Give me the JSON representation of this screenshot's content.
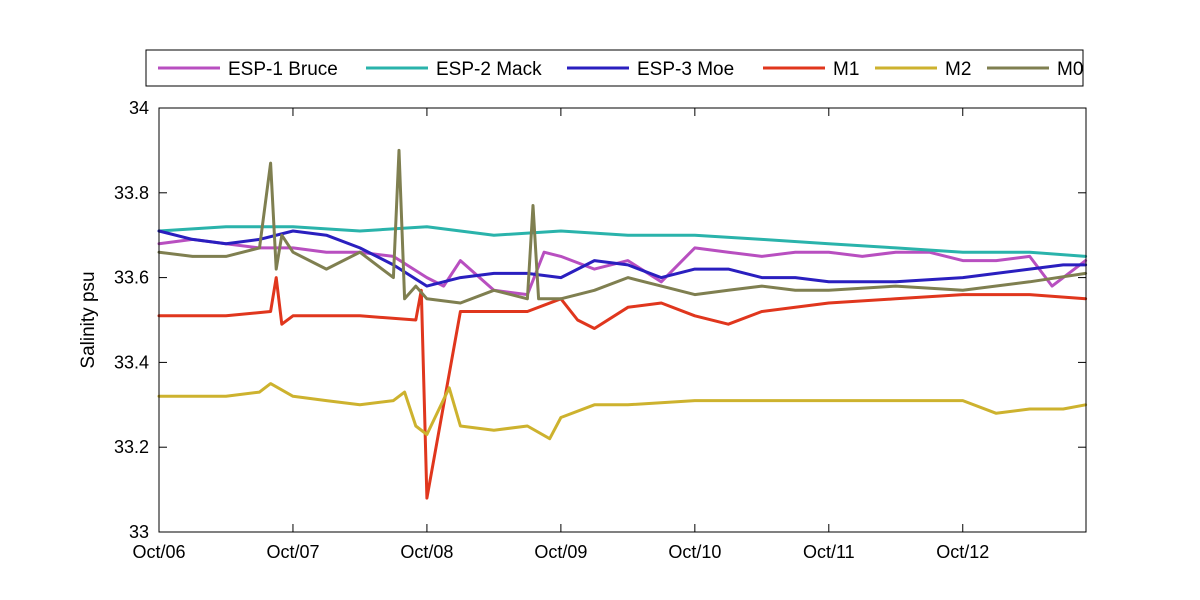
{
  "chart_data": {
    "type": "line",
    "title": "",
    "xlabel": "",
    "ylabel": "Salinity psu",
    "x_unit": "day",
    "xlim": [
      "Oct/06",
      "Oct/12 ~22:00"
    ],
    "x_ticks": [
      "Oct/06",
      "Oct/07",
      "Oct/08",
      "Oct/09",
      "Oct/10",
      "Oct/11",
      "Oct/12"
    ],
    "ylim": [
      33,
      34
    ],
    "y_ticks": [
      "33",
      "33.2",
      "33.4",
      "33.6",
      "33.8",
      "34"
    ],
    "grid": false,
    "legend_position": "top, outside plot, single row",
    "series": [
      {
        "name": "ESP-1 Bruce",
        "color": "#b84fc0",
        "x": [
          "Oct/06 00:00",
          "Oct/06 06:00",
          "Oct/06 12:00",
          "Oct/06 18:00",
          "Oct/07 00:00",
          "Oct/07 06:00",
          "Oct/07 12:00",
          "Oct/07 18:00",
          "Oct/08 00:00",
          "Oct/08 03:00",
          "Oct/08 06:00",
          "Oct/08 12:00",
          "Oct/08 18:00",
          "Oct/08 21:00",
          "Oct/09 00:00",
          "Oct/09 06:00",
          "Oct/09 12:00",
          "Oct/09 18:00",
          "Oct/10 00:00",
          "Oct/10 06:00",
          "Oct/10 12:00",
          "Oct/10 18:00",
          "Oct/11 00:00",
          "Oct/11 06:00",
          "Oct/11 12:00",
          "Oct/11 18:00",
          "Oct/12 00:00",
          "Oct/12 06:00",
          "Oct/12 12:00",
          "Oct/12 16:00",
          "Oct/12 22:00"
        ],
        "y": [
          33.68,
          33.69,
          33.68,
          33.67,
          33.67,
          33.66,
          33.66,
          33.65,
          33.6,
          33.58,
          33.64,
          33.57,
          33.56,
          33.66,
          33.65,
          33.62,
          33.64,
          33.59,
          33.67,
          33.66,
          33.65,
          33.66,
          33.66,
          33.65,
          33.66,
          33.66,
          33.64,
          33.64,
          33.65,
          33.58,
          33.64
        ]
      },
      {
        "name": "ESP-2 Mack",
        "color": "#2ab3ab",
        "x": [
          "Oct/06 00:00",
          "Oct/06 12:00",
          "Oct/07 00:00",
          "Oct/07 12:00",
          "Oct/08 00:00",
          "Oct/08 12:00",
          "Oct/09 00:00",
          "Oct/09 12:00",
          "Oct/10 00:00",
          "Oct/10 12:00",
          "Oct/11 00:00",
          "Oct/11 12:00",
          "Oct/12 00:00",
          "Oct/12 12:00",
          "Oct/12 22:00"
        ],
        "y": [
          33.71,
          33.72,
          33.72,
          33.71,
          33.72,
          33.7,
          33.71,
          33.7,
          33.7,
          33.69,
          33.68,
          33.67,
          33.66,
          33.66,
          33.65
        ]
      },
      {
        "name": "ESP-3 Moe",
        "color": "#2a1fbf",
        "x": [
          "Oct/06 00:00",
          "Oct/06 06:00",
          "Oct/06 12:00",
          "Oct/06 18:00",
          "Oct/07 00:00",
          "Oct/07 06:00",
          "Oct/07 12:00",
          "Oct/07 18:00",
          "Oct/08 00:00",
          "Oct/08 06:00",
          "Oct/08 12:00",
          "Oct/08 18:00",
          "Oct/09 00:00",
          "Oct/09 06:00",
          "Oct/09 12:00",
          "Oct/09 18:00",
          "Oct/10 00:00",
          "Oct/10 06:00",
          "Oct/10 12:00",
          "Oct/10 18:00",
          "Oct/11 00:00",
          "Oct/11 12:00",
          "Oct/12 00:00",
          "Oct/12 06:00",
          "Oct/12 12:00",
          "Oct/12 18:00",
          "Oct/12 22:00"
        ],
        "y": [
          33.71,
          33.69,
          33.68,
          33.69,
          33.71,
          33.7,
          33.67,
          33.63,
          33.58,
          33.6,
          33.61,
          33.61,
          33.6,
          33.64,
          33.63,
          33.6,
          33.62,
          33.62,
          33.6,
          33.6,
          33.59,
          33.59,
          33.6,
          33.61,
          33.62,
          33.63,
          33.63
        ]
      },
      {
        "name": "M1",
        "color": "#e0361d",
        "x": [
          "Oct/06 00:00",
          "Oct/06 12:00",
          "Oct/06 20:00",
          "Oct/06 21:00",
          "Oct/06 22:00",
          "Oct/07 00:00",
          "Oct/07 12:00",
          "Oct/07 22:00",
          "Oct/07 23:00",
          "Oct/08 00:00",
          "Oct/08 06:00",
          "Oct/08 12:00",
          "Oct/08 18:00",
          "Oct/09 00:00",
          "Oct/09 03:00",
          "Oct/09 06:00",
          "Oct/09 12:00",
          "Oct/09 18:00",
          "Oct/10 00:00",
          "Oct/10 06:00",
          "Oct/10 12:00",
          "Oct/10 18:00",
          "Oct/11 00:00",
          "Oct/11 12:00",
          "Oct/12 00:00",
          "Oct/12 12:00",
          "Oct/12 22:00"
        ],
        "y": [
          33.51,
          33.51,
          33.52,
          33.6,
          33.49,
          33.51,
          33.51,
          33.5,
          33.57,
          33.08,
          33.52,
          33.52,
          33.52,
          33.55,
          33.5,
          33.48,
          33.53,
          33.54,
          33.51,
          33.49,
          33.52,
          33.53,
          33.54,
          33.55,
          33.56,
          33.56,
          33.55
        ]
      },
      {
        "name": "M2",
        "color": "#cdb22e",
        "x": [
          "Oct/06 00:00",
          "Oct/06 12:00",
          "Oct/06 18:00",
          "Oct/06 20:00",
          "Oct/07 00:00",
          "Oct/07 06:00",
          "Oct/07 12:00",
          "Oct/07 18:00",
          "Oct/07 20:00",
          "Oct/07 22:00",
          "Oct/08 00:00",
          "Oct/08 04:00",
          "Oct/08 06:00",
          "Oct/08 12:00",
          "Oct/08 18:00",
          "Oct/08 22:00",
          "Oct/09 00:00",
          "Oct/09 06:00",
          "Oct/09 12:00",
          "Oct/10 00:00",
          "Oct/10 12:00",
          "Oct/11 00:00",
          "Oct/11 12:00",
          "Oct/12 00:00",
          "Oct/12 06:00",
          "Oct/12 12:00",
          "Oct/12 18:00",
          "Oct/12 22:00"
        ],
        "y": [
          33.32,
          33.32,
          33.33,
          33.35,
          33.32,
          33.31,
          33.3,
          33.31,
          33.33,
          33.25,
          33.23,
          33.34,
          33.25,
          33.24,
          33.25,
          33.22,
          33.27,
          33.3,
          33.3,
          33.31,
          33.31,
          33.31,
          33.31,
          33.31,
          33.28,
          33.29,
          33.29,
          33.3
        ]
      },
      {
        "name": "M0",
        "color": "#7f7f50",
        "x": [
          "Oct/06 00:00",
          "Oct/06 06:00",
          "Oct/06 12:00",
          "Oct/06 18:00",
          "Oct/06 20:00",
          "Oct/06 21:00",
          "Oct/06 22:00",
          "Oct/07 00:00",
          "Oct/07 06:00",
          "Oct/07 12:00",
          "Oct/07 18:00",
          "Oct/07 19:00",
          "Oct/07 20:00",
          "Oct/07 22:00",
          "Oct/08 00:00",
          "Oct/08 06:00",
          "Oct/08 12:00",
          "Oct/08 18:00",
          "Oct/08 19:00",
          "Oct/08 20:00",
          "Oct/09 00:00",
          "Oct/09 06:00",
          "Oct/09 12:00",
          "Oct/09 18:00",
          "Oct/10 00:00",
          "Oct/10 06:00",
          "Oct/10 12:00",
          "Oct/10 18:00",
          "Oct/11 00:00",
          "Oct/11 12:00",
          "Oct/12 00:00",
          "Oct/12 12:00",
          "Oct/12 22:00"
        ],
        "y": [
          33.66,
          33.65,
          33.65,
          33.67,
          33.87,
          33.62,
          33.7,
          33.66,
          33.62,
          33.66,
          33.6,
          33.9,
          33.55,
          33.58,
          33.55,
          33.54,
          33.57,
          33.55,
          33.77,
          33.55,
          33.55,
          33.57,
          33.6,
          33.58,
          33.56,
          33.57,
          33.58,
          33.57,
          33.57,
          33.58,
          33.57,
          33.59,
          33.61
        ]
      }
    ]
  }
}
